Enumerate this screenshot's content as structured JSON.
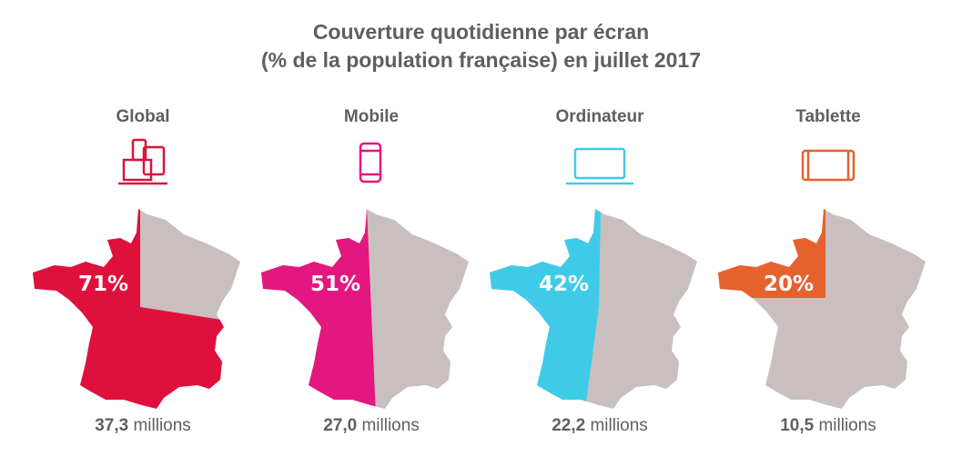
{
  "title_line1": "Couverture quotidienne par écran",
  "title_line2": "(% de la population française) en juillet 2017",
  "chart_data": {
    "type": "map-proportion",
    "title": "Couverture quotidienne par écran (% de la population française) en juillet 2017",
    "categories": [
      "Global",
      "Mobile",
      "Ordinateur",
      "Tablette"
    ],
    "values": [
      71,
      51,
      42,
      20
    ],
    "value_labels": [
      "71%",
      "51%",
      "42%",
      "20%"
    ],
    "millions_value": [
      "37,3",
      "27,0",
      "22,2",
      "10,5"
    ],
    "millions_unit": "millions",
    "icons": [
      "multi-device-icon",
      "smartphone-icon",
      "laptop-icon",
      "tablet-icon"
    ],
    "colors": [
      "#e0103d",
      "#e3177f",
      "#3fcbe8",
      "#e5622e"
    ],
    "remainder_color": "#c9bfbf"
  }
}
